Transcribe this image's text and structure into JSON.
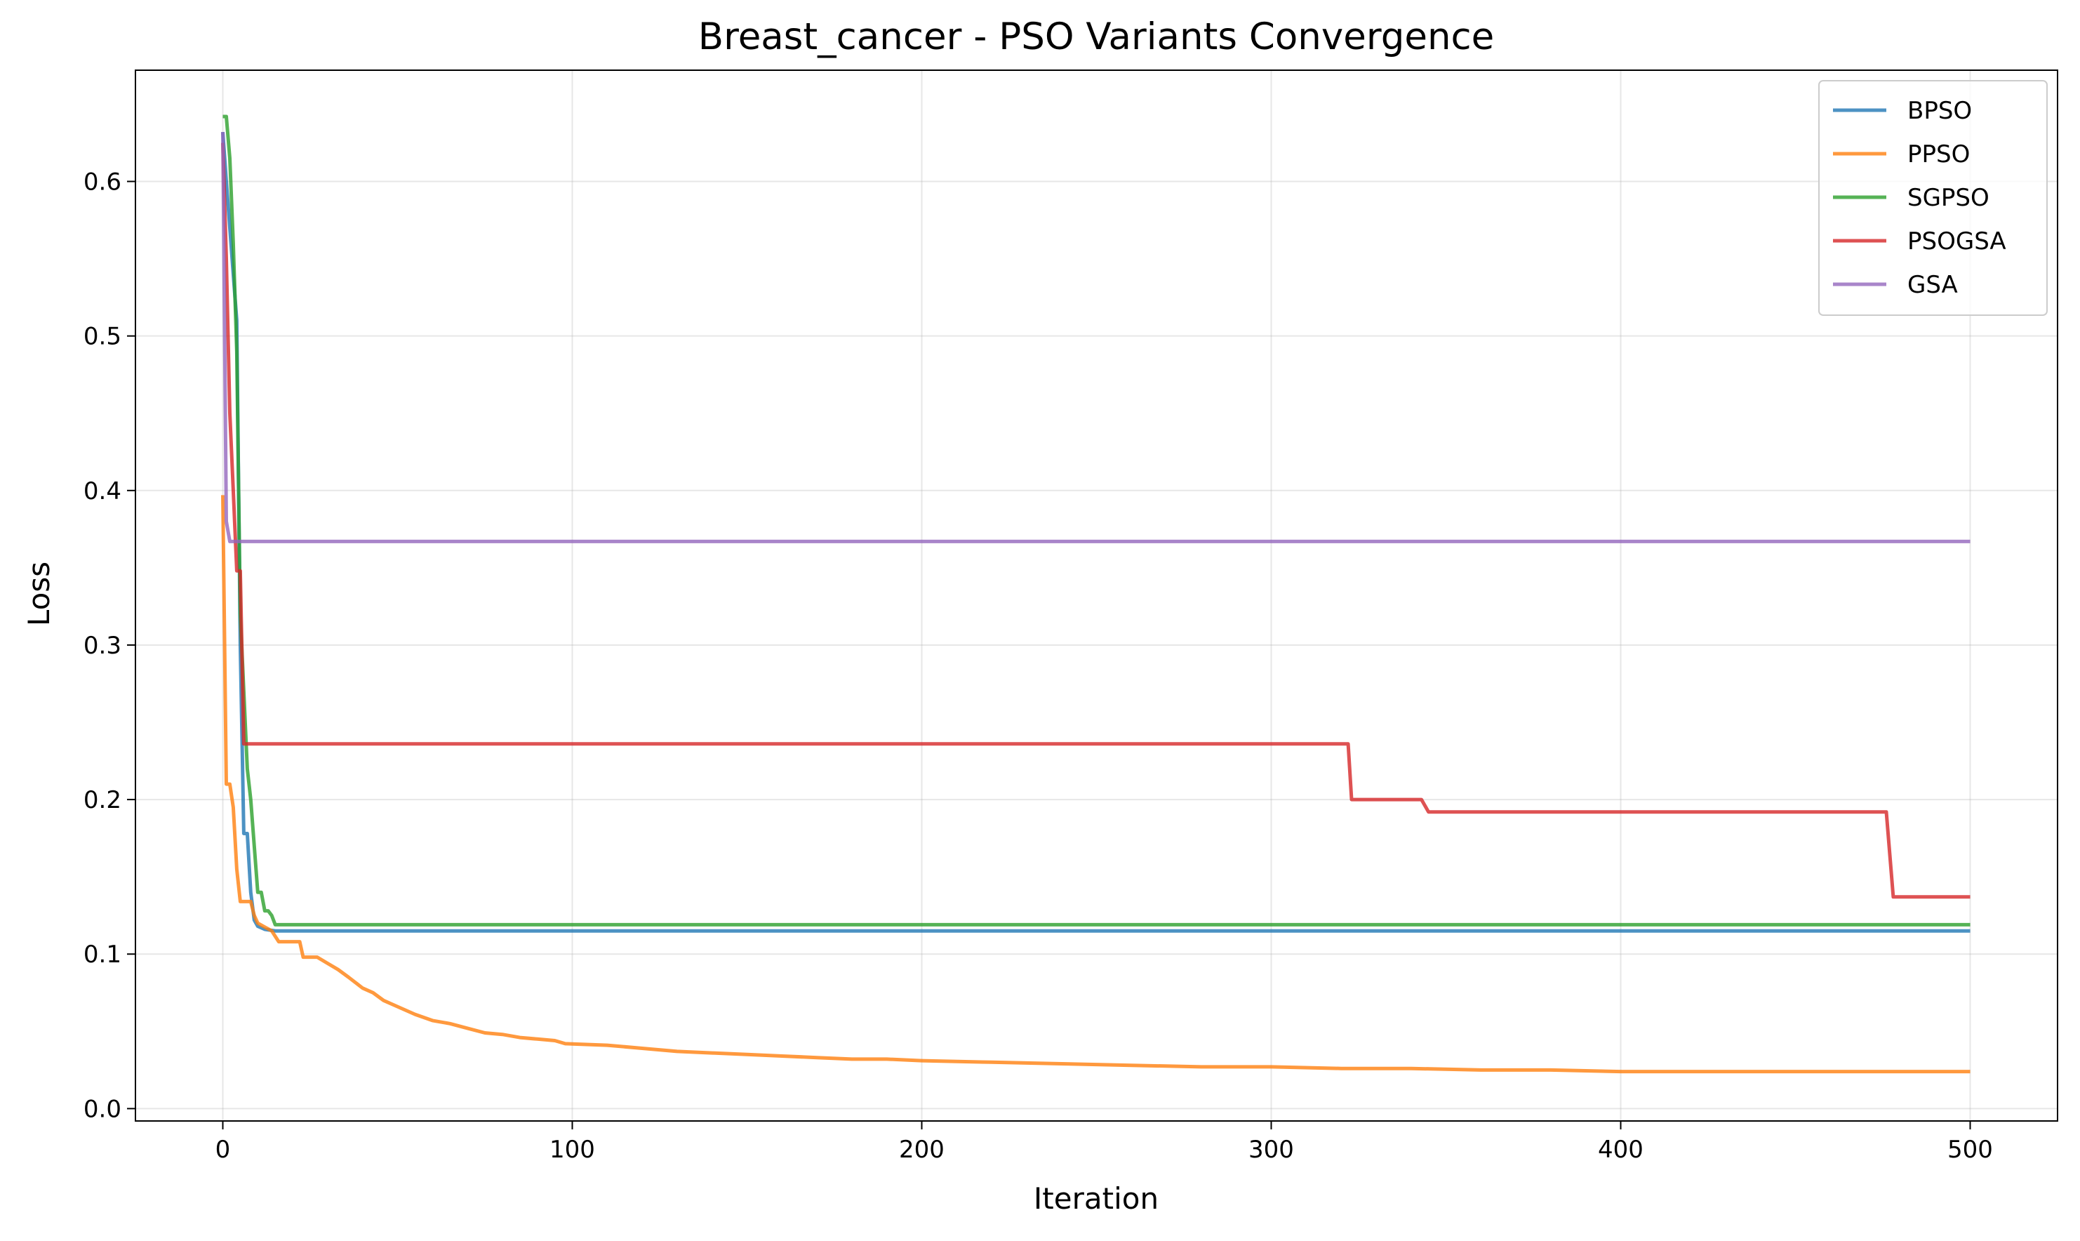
{
  "chart_data": {
    "type": "line",
    "title": "Breast_cancer - PSO Variants Convergence",
    "xlabel": "Iteration",
    "ylabel": "Loss",
    "xlim": [
      -25,
      525
    ],
    "ylim": [
      -0.008,
      0.672
    ],
    "xticks": [
      0,
      100,
      200,
      300,
      400,
      500
    ],
    "yticks": [
      0.0,
      0.1,
      0.2,
      0.3,
      0.4,
      0.5,
      0.6
    ],
    "xtick_labels": [
      "0",
      "100",
      "200",
      "300",
      "400",
      "500"
    ],
    "ytick_labels": [
      "0.0",
      "0.1",
      "0.2",
      "0.3",
      "0.4",
      "0.5",
      "0.6"
    ],
    "grid": true,
    "legend_position": "top-right",
    "series": [
      {
        "name": "BPSO",
        "color": "#1f77b4",
        "points": [
          [
            0,
            0.632
          ],
          [
            1,
            0.6
          ],
          [
            2,
            0.57
          ],
          [
            3,
            0.54
          ],
          [
            4,
            0.51
          ],
          [
            5,
            0.3
          ],
          [
            6,
            0.178
          ],
          [
            7,
            0.178
          ],
          [
            8,
            0.14
          ],
          [
            9,
            0.122
          ],
          [
            10,
            0.118
          ],
          [
            12,
            0.116
          ],
          [
            15,
            0.115
          ],
          [
            500,
            0.115
          ]
        ]
      },
      {
        "name": "PPSO",
        "color": "#ff7f0e",
        "points": [
          [
            0,
            0.397
          ],
          [
            1,
            0.21
          ],
          [
            2,
            0.21
          ],
          [
            3,
            0.195
          ],
          [
            4,
            0.155
          ],
          [
            5,
            0.134
          ],
          [
            8,
            0.134
          ],
          [
            9,
            0.125
          ],
          [
            10,
            0.12
          ],
          [
            14,
            0.115
          ],
          [
            16,
            0.108
          ],
          [
            22,
            0.108
          ],
          [
            23,
            0.098
          ],
          [
            27,
            0.098
          ],
          [
            30,
            0.094
          ],
          [
            33,
            0.09
          ],
          [
            36,
            0.085
          ],
          [
            40,
            0.078
          ],
          [
            43,
            0.075
          ],
          [
            46,
            0.07
          ],
          [
            50,
            0.066
          ],
          [
            55,
            0.061
          ],
          [
            60,
            0.057
          ],
          [
            65,
            0.055
          ],
          [
            70,
            0.052
          ],
          [
            75,
            0.049
          ],
          [
            80,
            0.048
          ],
          [
            85,
            0.046
          ],
          [
            90,
            0.045
          ],
          [
            95,
            0.044
          ],
          [
            98,
            0.042
          ],
          [
            110,
            0.041
          ],
          [
            120,
            0.039
          ],
          [
            130,
            0.037
          ],
          [
            140,
            0.036
          ],
          [
            150,
            0.035
          ],
          [
            160,
            0.034
          ],
          [
            170,
            0.033
          ],
          [
            180,
            0.032
          ],
          [
            190,
            0.032
          ],
          [
            200,
            0.031
          ],
          [
            220,
            0.03
          ],
          [
            240,
            0.029
          ],
          [
            260,
            0.028
          ],
          [
            280,
            0.027
          ],
          [
            300,
            0.027
          ],
          [
            320,
            0.026
          ],
          [
            340,
            0.026
          ],
          [
            360,
            0.025
          ],
          [
            380,
            0.025
          ],
          [
            400,
            0.024
          ],
          [
            450,
            0.024
          ],
          [
            500,
            0.024
          ]
        ]
      },
      {
        "name": "SGPSO",
        "color": "#2ca02c",
        "points": [
          [
            0,
            0.642
          ],
          [
            1,
            0.642
          ],
          [
            2,
            0.615
          ],
          [
            3,
            0.56
          ],
          [
            4,
            0.49
          ],
          [
            5,
            0.32
          ],
          [
            6,
            0.27
          ],
          [
            7,
            0.22
          ],
          [
            8,
            0.2
          ],
          [
            9,
            0.17
          ],
          [
            10,
            0.14
          ],
          [
            11,
            0.14
          ],
          [
            12,
            0.128
          ],
          [
            13,
            0.128
          ],
          [
            14,
            0.125
          ],
          [
            15,
            0.119
          ],
          [
            500,
            0.119
          ]
        ]
      },
      {
        "name": "PSOGSA",
        "color": "#d62728",
        "points": [
          [
            0,
            0.625
          ],
          [
            1,
            0.55
          ],
          [
            2,
            0.45
          ],
          [
            3,
            0.4
          ],
          [
            4,
            0.348
          ],
          [
            5,
            0.348
          ],
          [
            6,
            0.236
          ],
          [
            322,
            0.236
          ],
          [
            323,
            0.2
          ],
          [
            343,
            0.2
          ],
          [
            345,
            0.192
          ],
          [
            476,
            0.192
          ],
          [
            478,
            0.137
          ],
          [
            500,
            0.137
          ]
        ]
      },
      {
        "name": "GSA",
        "color": "#9467bd",
        "points": [
          [
            0,
            0.632
          ],
          [
            1,
            0.38
          ],
          [
            2,
            0.367
          ],
          [
            500,
            0.367
          ]
        ]
      }
    ]
  }
}
